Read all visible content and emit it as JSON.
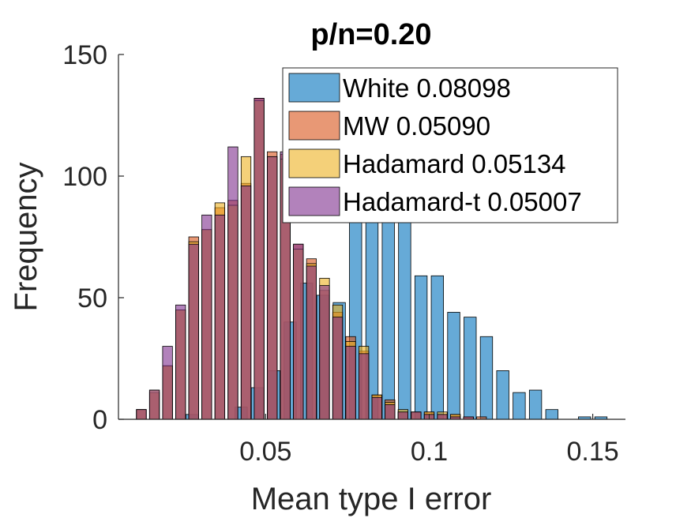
{
  "chart_data": {
    "type": "bar",
    "subtype": "overlaid histogram",
    "title": "p/n=0.20",
    "xlabel": "Mean type I error",
    "ylabel": "Frequency",
    "xlim": [
      0.005,
      0.16
    ],
    "ylim": [
      0,
      150
    ],
    "xticks": [
      0.05,
      0.1,
      0.15
    ],
    "xtick_labels": [
      "0.05",
      "0.1",
      "0.15"
    ],
    "yticks": [
      0,
      50,
      100,
      150
    ],
    "ytick_labels": [
      "0",
      "50",
      "100",
      "150"
    ],
    "legend_position": "top-right",
    "series": [
      {
        "name": "White 0.08098",
        "color": "#0072BD",
        "bin_edges": [
          0.025,
          0.03,
          0.035,
          0.04,
          0.045,
          0.05,
          0.055,
          0.06,
          0.065,
          0.07,
          0.075,
          0.08,
          0.085,
          0.09,
          0.095,
          0.1,
          0.105,
          0.11,
          0.115,
          0.12,
          0.125,
          0.13,
          0.135,
          0.14,
          0.145,
          0.15,
          0.155
        ],
        "values": [
          2,
          0,
          0,
          5,
          13,
          20,
          40,
          56,
          51,
          48,
          83,
          98,
          100,
          86,
          59,
          59,
          44,
          42,
          34,
          20,
          11,
          12,
          4,
          0,
          1,
          1
        ]
      },
      {
        "name": "MW 0.05090",
        "color": "#D95319",
        "bin_edges": [
          0.01,
          0.014,
          0.018,
          0.022,
          0.026,
          0.03,
          0.034,
          0.038,
          0.042,
          0.046,
          0.05,
          0.054,
          0.058,
          0.062,
          0.066,
          0.07,
          0.074,
          0.078,
          0.082,
          0.086,
          0.09,
          0.094,
          0.098,
          0.102,
          0.106,
          0.11,
          0.114,
          0.118
        ],
        "values": [
          4,
          11,
          22,
          45,
          75,
          78,
          87,
          90,
          97,
          132,
          110,
          109,
          72,
          66,
          53,
          44,
          34,
          28,
          10,
          8,
          3,
          3,
          3,
          2,
          2,
          1,
          1
        ]
      },
      {
        "name": "Hadamard 0.05134",
        "color": "#EDB120",
        "bin_edges": [
          0.01,
          0.014,
          0.018,
          0.022,
          0.026,
          0.03,
          0.034,
          0.038,
          0.042,
          0.046,
          0.05,
          0.054,
          0.058,
          0.062,
          0.066,
          0.07,
          0.074,
          0.078,
          0.082,
          0.086,
          0.09,
          0.094,
          0.098,
          0.102,
          0.106,
          0.11,
          0.114,
          0.118
        ],
        "values": [
          4,
          12,
          22,
          45,
          73,
          78,
          89,
          88,
          108,
          131,
          108,
          107,
          70,
          64,
          58,
          47,
          32,
          30,
          10,
          7,
          4,
          3,
          3,
          3,
          2,
          1,
          0
        ]
      },
      {
        "name": "Hadamard-t 0.05007",
        "color": "#7E2F8E",
        "bin_edges": [
          0.01,
          0.014,
          0.018,
          0.022,
          0.026,
          0.03,
          0.034,
          0.038,
          0.042,
          0.046,
          0.05,
          0.054,
          0.058,
          0.062,
          0.066,
          0.07,
          0.074,
          0.078,
          0.082,
          0.086,
          0.09,
          0.094,
          0.098,
          0.102,
          0.106,
          0.11,
          0.114,
          0.118
        ],
        "values": [
          4,
          12,
          30,
          47,
          72,
          84,
          84,
          112,
          96,
          132,
          108,
          110,
          72,
          63,
          55,
          42,
          30,
          27,
          9,
          6,
          3,
          3,
          2,
          2,
          1,
          1,
          0
        ]
      }
    ]
  }
}
